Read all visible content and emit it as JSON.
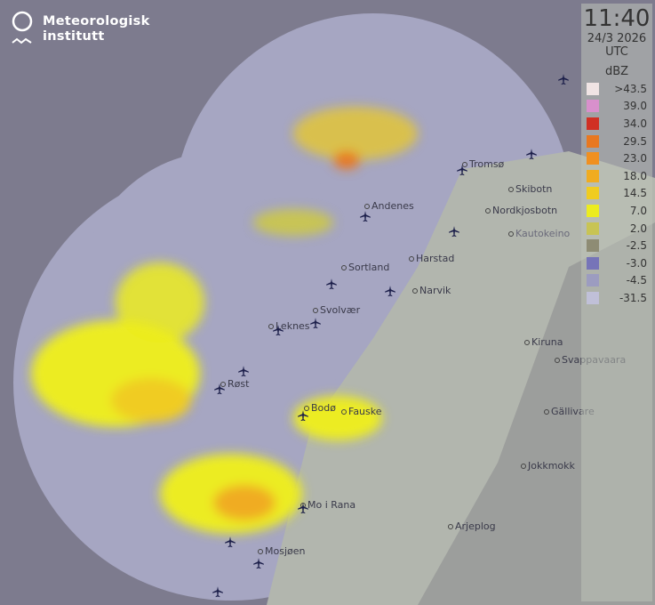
{
  "logo": {
    "line1": "Meteorologisk",
    "line2": "institutt"
  },
  "timestamp": {
    "time": "11:40",
    "date": "24/3 2026",
    "zone": "UTC"
  },
  "legend": {
    "unit": "dBZ",
    "levels": [
      {
        "label": ">43.5",
        "color": "#f0e4e4"
      },
      {
        "label": "39.0",
        "color": "#d890cc"
      },
      {
        "label": "34.0",
        "color": "#d03024"
      },
      {
        "label": "29.5",
        "color": "#e87820"
      },
      {
        "label": "23.0",
        "color": "#f09020"
      },
      {
        "label": "18.0",
        "color": "#f0ac20"
      },
      {
        "label": "14.5",
        "color": "#f0cc20"
      },
      {
        "label": "7.0",
        "color": "#ecec20"
      },
      {
        "label": "2.0",
        "color": "#c8c454"
      },
      {
        "label": "-2.5",
        "color": "#8e8c74"
      },
      {
        "label": "-3.0",
        "color": "#7674b8"
      },
      {
        "label": "-4.5",
        "color": "#9c9cc0"
      },
      {
        "label": "-31.5",
        "color": "#c0c0d8"
      }
    ]
  },
  "places": [
    "Tromsø",
    "Skibotn",
    "Nordkjosbotn",
    "Andenes",
    "Harstad",
    "Sortland",
    "Narvik",
    "Svolvær",
    "Leknes",
    "Kiruna",
    "Svappavaara",
    "Røst",
    "Bodø",
    "Fauske",
    "Gällivare",
    "Jokkmokk",
    "Mo i Rana",
    "Arjeplog",
    "Mosjøen",
    "Kautokeino"
  ],
  "airport_icon": "airplane-icon"
}
